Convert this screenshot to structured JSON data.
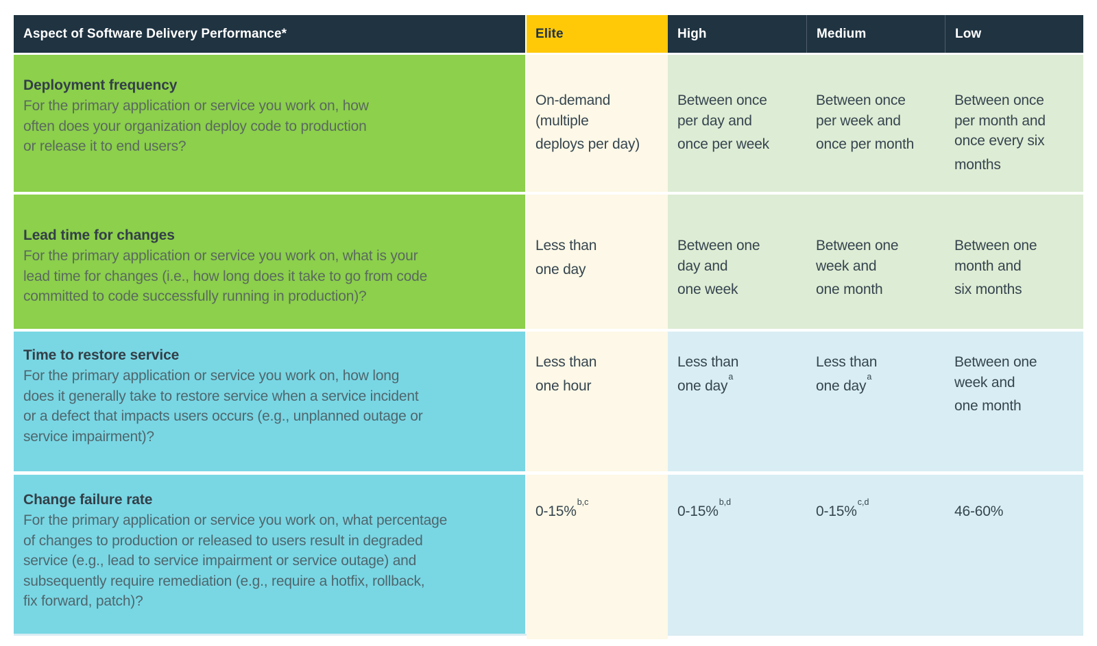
{
  "colors": {
    "navy": "#1f3341",
    "yellow": "#ffc908",
    "green": "#8cd04b",
    "cyan": "#79d7e4",
    "cream": "#fdf8e7",
    "light-green": "#ddecd4",
    "light-blue": "#d9eef4",
    "header-text": "#ffffff",
    "elite-header-text": "#1f3341",
    "title-text": "#333f48",
    "value-text": "#36454f",
    "desc-green": "#5a6a5e",
    "desc-blue": "#4f666d"
  },
  "table": {
    "header": {
      "aspect_label": "Aspect of Software Delivery Performance*",
      "levels": [
        "Elite",
        "High",
        "Medium",
        "Low"
      ]
    },
    "rows": [
      {
        "title": "Deployment frequency",
        "description": "For the primary application or service you work on, how\noften does your organization deploy code to production\nor release it to end users?",
        "values": [
          {
            "text": "On-demand\n(multiple\ndeploys per day)",
            "sup": ""
          },
          {
            "text": "Between once\nper day and\nonce per week",
            "sup": ""
          },
          {
            "text": "Between once\nper week and\nonce per month",
            "sup": ""
          },
          {
            "text": "Between once\nper month and\nonce every six\nmonths",
            "sup": ""
          }
        ]
      },
      {
        "title": "Lead time for changes",
        "description": "For the primary application or service you work on, what is your\nlead time for changes (i.e., how long does it take to go from code\ncommitted to code successfully running in production)?",
        "values": [
          {
            "text": "Less than\none day",
            "sup": ""
          },
          {
            "text": "Between one\nday and\none week",
            "sup": ""
          },
          {
            "text": "Between one\nweek and\none month",
            "sup": ""
          },
          {
            "text": "Between one\nmonth and\nsix months",
            "sup": ""
          }
        ]
      },
      {
        "title": "Time to restore service",
        "description": "For the primary application or service you work on, how long\ndoes it generally take to restore service when a service incident\nor a defect that impacts users occurs (e.g., unplanned outage or\nservice impairment)?",
        "values": [
          {
            "text": "Less than\none hour",
            "sup": ""
          },
          {
            "text": "Less than\none day",
            "sup": "a"
          },
          {
            "text": "Less than\none day",
            "sup": "a"
          },
          {
            "text": "Between one\nweek and\none month",
            "sup": ""
          }
        ]
      },
      {
        "title": "Change failure rate",
        "description": "For the primary application or service you work on, what percentage\nof changes to production or released to users result in degraded\nservice (e.g., lead to service impairment or service outage) and\nsubsequently require remediation (e.g., require a hotfix, rollback,\nfix forward, patch)?",
        "values": [
          {
            "text": "0-15%",
            "sup": "b,c"
          },
          {
            "text": "0-15%",
            "sup": "b,d"
          },
          {
            "text": "0-15%",
            "sup": "c,d"
          },
          {
            "text": "46-60%",
            "sup": ""
          }
        ]
      }
    ]
  }
}
